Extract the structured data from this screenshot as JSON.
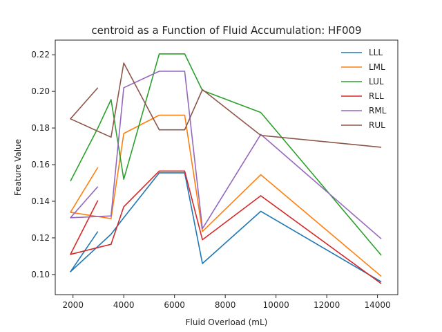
{
  "chart_data": {
    "type": "line",
    "title": "centroid as a Function of Fluid Accumulation: HF009",
    "xlabel": "Fluid Overload (mL)",
    "ylabel": "Feature Value",
    "xlim": [
      1300,
      14800
    ],
    "ylim": [
      0.089,
      0.228
    ],
    "xticks": [
      2000,
      4000,
      6000,
      8000,
      10000,
      12000,
      14000
    ],
    "yticks": [
      0.1,
      0.12,
      0.14,
      0.16,
      0.18,
      0.2,
      0.22
    ],
    "ytick_labels": [
      "0.10",
      "0.12",
      "0.14",
      "0.16",
      "0.18",
      "0.20",
      "0.22"
    ],
    "grid": false,
    "legend_position": "top-right",
    "series": [
      {
        "name": "LLL",
        "color": "#1f77b4",
        "x": [
          2980,
          1900,
          3500,
          4000,
          5400,
          6400,
          7100,
          9400,
          14150
        ],
        "y": [
          0.1235,
          0.1015,
          0.122,
          0.131,
          0.1555,
          0.1555,
          0.106,
          0.1345,
          0.096
        ]
      },
      {
        "name": "LML",
        "color": "#ff7f0e",
        "x": [
          2980,
          1900,
          3500,
          4000,
          5400,
          6400,
          7100,
          9400,
          14150
        ],
        "y": [
          0.1585,
          0.134,
          0.1305,
          0.177,
          0.187,
          0.187,
          0.1235,
          0.1545,
          0.099
        ]
      },
      {
        "name": "LUL",
        "color": "#2ca02c",
        "x": [
          1900,
          2980,
          3500,
          4000,
          5400,
          6400,
          7100,
          9400,
          14150
        ],
        "y": [
          0.151,
          0.18,
          0.1955,
          0.152,
          0.2205,
          0.2205,
          0.2005,
          0.1885,
          0.1105
        ]
      },
      {
        "name": "RLL",
        "color": "#d62728",
        "x": [
          2980,
          1900,
          3500,
          4000,
          5400,
          6400,
          7100,
          9400,
          14150
        ],
        "y": [
          0.1405,
          0.111,
          0.1165,
          0.137,
          0.1565,
          0.1565,
          0.119,
          0.143,
          0.095
        ]
      },
      {
        "name": "RML",
        "color": "#9467bd",
        "x": [
          2980,
          1900,
          3500,
          4000,
          5400,
          6400,
          7100,
          9400,
          14150
        ],
        "y": [
          0.148,
          0.131,
          0.132,
          0.202,
          0.211,
          0.211,
          0.125,
          0.1765,
          0.1195
        ]
      },
      {
        "name": "RUL",
        "color": "#8c564b",
        "x": [
          2980,
          1900,
          3500,
          4000,
          5400,
          6400,
          7100,
          9400,
          14150
        ],
        "y": [
          0.202,
          0.185,
          0.175,
          0.2155,
          0.179,
          0.179,
          0.201,
          0.176,
          0.1695
        ]
      }
    ]
  }
}
